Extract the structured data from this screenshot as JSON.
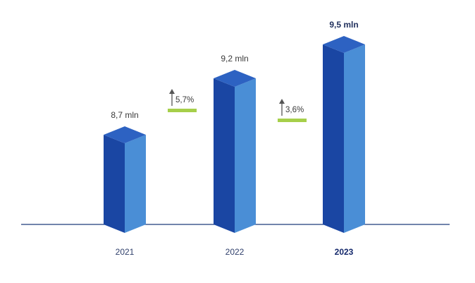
{
  "chart_data": {
    "type": "bar",
    "categories": [
      "2021",
      "2022",
      "2023"
    ],
    "values": [
      8.7,
      9.2,
      9.5
    ],
    "unit": "mln",
    "value_labels": [
      "8,7 mln",
      "9,2 mln",
      "9,5 mln"
    ],
    "highlighted_category": "2023",
    "changes": [
      {
        "from": "2021",
        "to": "2022",
        "label": "5,7%",
        "direction": "up"
      },
      {
        "from": "2022",
        "to": "2023",
        "label": "3,6%",
        "direction": "up"
      }
    ],
    "colors": {
      "bar_front": "#1a46a3",
      "bar_side": "#4a8ed6",
      "bar_top": "#2d62c2",
      "baseline": "#1f3b7a",
      "change_marker": "#a6cf4a",
      "arrow": "#555555"
    },
    "grid": false,
    "legend": "none"
  }
}
